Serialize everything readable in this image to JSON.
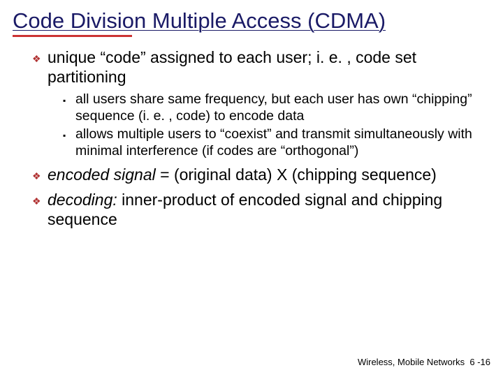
{
  "title": "Code Division Multiple Access (CDMA)",
  "title_color": "#1a1a66",
  "title_redline_width_pct": 32,
  "bullets": {
    "l1_color": "#b03030",
    "l1_glyph": "❖",
    "l2_color": "#000000",
    "l2_glyph": "▪"
  },
  "items": [
    {
      "text": "unique “code” assigned to each user; i. e. , code set partitioning",
      "sub": [
        "all users share same frequency, but each user has own “chipping” sequence (i. e. , code) to encode data",
        "allows multiple users to “coexist” and transmit simultaneously with minimal interference (if codes are “orthogonal”)"
      ]
    },
    {
      "html_parts": [
        {
          "t": "encoded signal",
          "italic": true
        },
        {
          "t": " = (original data) X (chipping sequence)",
          "italic": false
        }
      ]
    },
    {
      "html_parts": [
        {
          "t": "decoding:",
          "italic": true
        },
        {
          "t": " inner-product of encoded signal and chipping sequence",
          "italic": false
        }
      ]
    }
  ],
  "footer": {
    "section": "Wireless, Mobile Networks",
    "page": "6 -16"
  },
  "fonts": {
    "title_size": 31,
    "l1_size": 23,
    "l2_size": 19.5,
    "footer_size": 13
  },
  "background": "#ffffff"
}
